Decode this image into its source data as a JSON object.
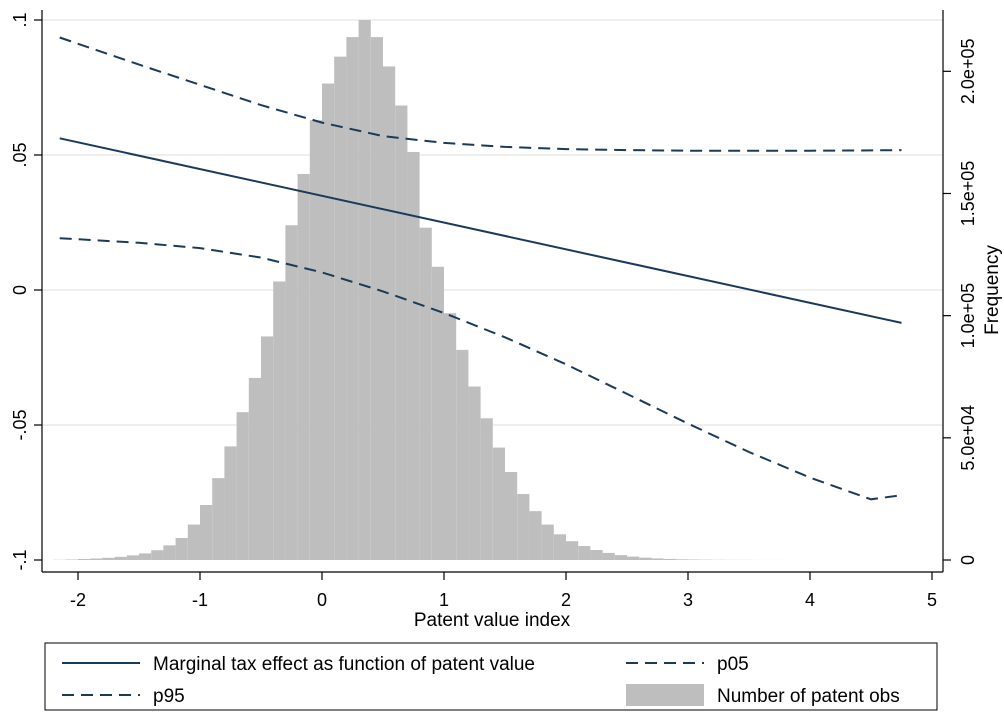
{
  "chart_data": {
    "type": "bar",
    "xlabel": "Patent value index",
    "ylabel_left": "",
    "ylabel_right": "Frequency",
    "xlim": [
      -2.3,
      5.1
    ],
    "ylim_left": [
      -0.1,
      0.1
    ],
    "ylim_right": [
      0,
      221000
    ],
    "x_ticks": [
      {
        "v": -2,
        "label": "-2"
      },
      {
        "v": -1,
        "label": "-1"
      },
      {
        "v": 0,
        "label": "0"
      },
      {
        "v": 1,
        "label": "1"
      },
      {
        "v": 2,
        "label": "2"
      },
      {
        "v": 3,
        "label": "3"
      },
      {
        "v": 4,
        "label": "4"
      },
      {
        "v": 5,
        "label": "5"
      }
    ],
    "y_left_ticks": [
      {
        "v": -0.1,
        "label": "-.1"
      },
      {
        "v": -0.05,
        "label": "-.05"
      },
      {
        "v": 0,
        "label": "0"
      },
      {
        "v": 0.05,
        "label": ".05"
      },
      {
        "v": 0.1,
        "label": ".1"
      }
    ],
    "y_right_ticks": [
      {
        "v": 0,
        "label": "0"
      },
      {
        "v": 50000,
        "label": "5.0e+04"
      },
      {
        "v": 100000,
        "label": "1.0e+05"
      },
      {
        "v": 150000,
        "label": "1.5e+05"
      },
      {
        "v": 200000,
        "label": "2.0e+05"
      }
    ],
    "grid": true,
    "legend_position": "bottom",
    "histogram": {
      "name": "Number of patent obs",
      "color": "#bebebe",
      "bin_width": 0.1,
      "bins_start": [
        -2.2,
        -2.1,
        -2.0,
        -1.9,
        -1.8,
        -1.7,
        -1.6,
        -1.5,
        -1.4,
        -1.3,
        -1.2,
        -1.1,
        -1.0,
        -0.9,
        -0.8,
        -0.7,
        -0.6,
        -0.5,
        -0.4,
        -0.3,
        -0.2,
        -0.1,
        0.0,
        0.1,
        0.2,
        0.3,
        0.4,
        0.5,
        0.6,
        0.7,
        0.8,
        0.9,
        1.0,
        1.1,
        1.2,
        1.3,
        1.4,
        1.5,
        1.6,
        1.7,
        1.8,
        1.9,
        2.0,
        2.1,
        2.2,
        2.3,
        2.4,
        2.5,
        2.6,
        2.7,
        2.8,
        2.9,
        3.0,
        3.1,
        3.2,
        3.3,
        3.4,
        3.5,
        3.6,
        3.7,
        3.8,
        3.9,
        4.0,
        4.1,
        4.2,
        4.3,
        4.4,
        4.5,
        4.6,
        4.7
      ],
      "values": [
        100,
        200,
        400,
        600,
        900,
        1300,
        1900,
        2700,
        4000,
        6000,
        9000,
        14500,
        22500,
        33500,
        46500,
        60500,
        74500,
        91500,
        114000,
        137000,
        158000,
        180000,
        195000,
        206000,
        214000,
        221000,
        214000,
        202000,
        186000,
        167000,
        136000,
        120000,
        101000,
        86000,
        71000,
        58000,
        46000,
        36000,
        27000,
        20000,
        14500,
        10500,
        7700,
        5700,
        4100,
        2900,
        2000,
        1400,
        950,
        650,
        440,
        300,
        200,
        140,
        95,
        65,
        45,
        30,
        20,
        15,
        12,
        10,
        8,
        6,
        5,
        4,
        3,
        3,
        2,
        2
      ]
    },
    "series": [
      {
        "name": "Marginal tax effect as function of patent value",
        "style": "solid",
        "color": "#1a3a5a",
        "x": [
          -2.15,
          4.75
        ],
        "y": [
          0.0562,
          -0.0122
        ]
      },
      {
        "name": "p05",
        "style": "dashed",
        "color": "#1a3a5a",
        "x": [
          -2.15,
          -1.5,
          -1.0,
          -0.5,
          0.0,
          0.5,
          1.0,
          1.5,
          2.0,
          2.5,
          3.0,
          3.5,
          4.0,
          4.5,
          4.75
        ],
        "y": [
          0.0192,
          0.0175,
          0.0155,
          0.012,
          0.0065,
          -0.0005,
          -0.0085,
          -0.0175,
          -0.0275,
          -0.0385,
          -0.0495,
          -0.06,
          -0.0695,
          -0.0775,
          -0.076
        ]
      },
      {
        "name": "p95",
        "style": "dashed",
        "color": "#1a3a5a",
        "x": [
          -2.15,
          -1.5,
          -1.0,
          -0.5,
          0.0,
          0.5,
          1.0,
          1.5,
          2.0,
          2.5,
          3.0,
          3.5,
          4.0,
          4.5,
          4.75
        ],
        "y": [
          0.0935,
          0.0835,
          0.076,
          0.0685,
          0.062,
          0.057,
          0.0545,
          0.053,
          0.0522,
          0.0518,
          0.0516,
          0.0516,
          0.0516,
          0.0517,
          0.0518
        ]
      }
    ]
  },
  "legend": {
    "items": [
      {
        "label": "Marginal tax effect as function of patent value",
        "kind": "solid"
      },
      {
        "label": "p05",
        "kind": "dashed"
      },
      {
        "label": "p95",
        "kind": "dashed"
      },
      {
        "label": "Number of patent obs",
        "kind": "bar"
      }
    ]
  }
}
